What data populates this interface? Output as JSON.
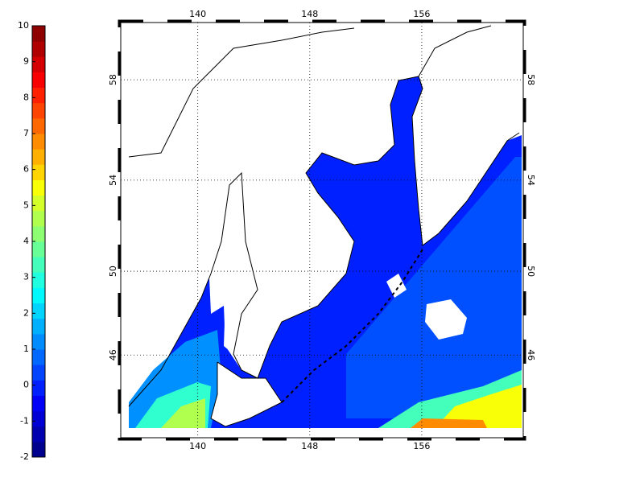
{
  "colorbar": {
    "range": [
      -2,
      10
    ],
    "ticks": [
      -2,
      -1,
      0,
      1,
      2,
      3,
      4,
      5,
      6,
      7,
      8,
      9,
      10
    ],
    "colors": [
      "#00008f",
      "#0000b0",
      "#0000d4",
      "#0000f8",
      "#0020ff",
      "#0044ff",
      "#0068ff",
      "#008cff",
      "#00b0ff",
      "#00d4ff",
      "#00f8ff",
      "#20ffdf",
      "#44ffbb",
      "#68ff97",
      "#8cff73",
      "#b0ff4f",
      "#d4ff2b",
      "#f8ff07",
      "#ffd400",
      "#ffb000",
      "#ff8c00",
      "#ff6800",
      "#ff4400",
      "#ff2000",
      "#f80000",
      "#d40000",
      "#b00000",
      "#8f0000"
    ]
  },
  "map": {
    "xlim": [
      134.5,
      163.25
    ],
    "ylim": [
      41.75,
      60.1
    ],
    "lon_ticks": [
      140,
      148,
      156
    ],
    "lat_ticks": [
      46,
      50,
      54,
      58
    ],
    "grid": true
  }
}
